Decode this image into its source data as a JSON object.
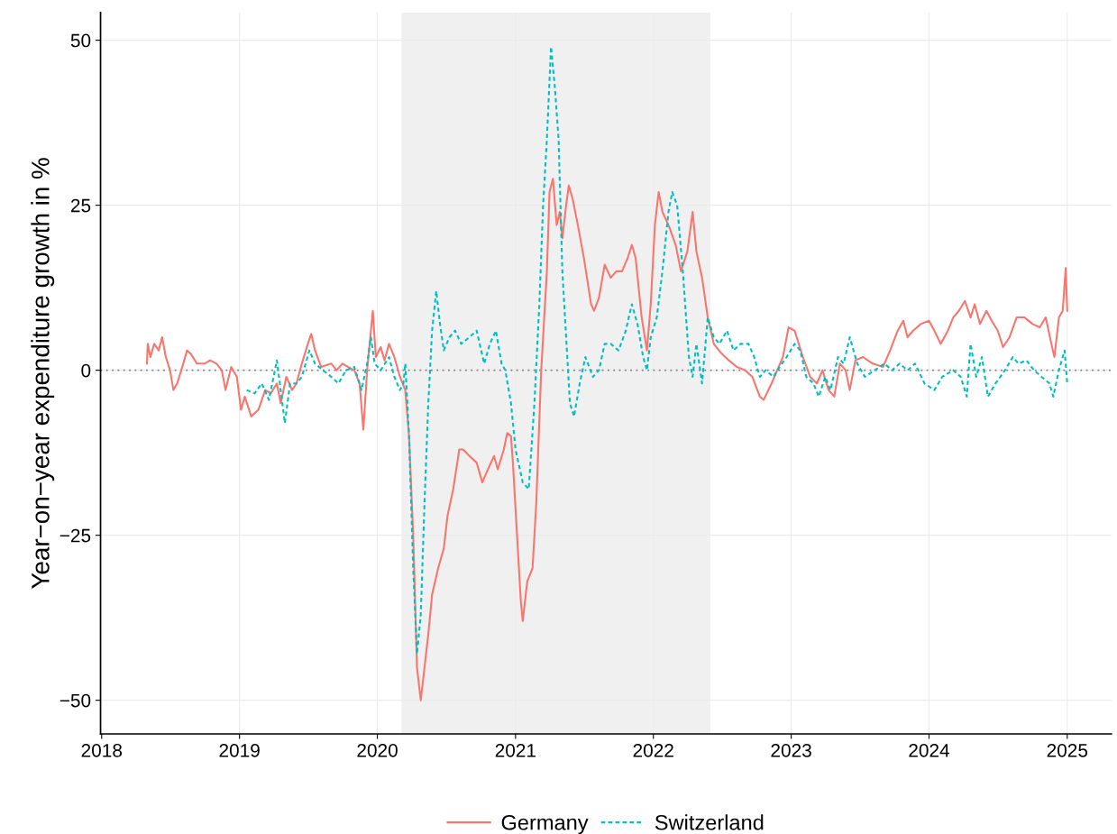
{
  "chart_data": {
    "type": "line",
    "ylabel": "Year−on−year expenditure growth in %",
    "xlim": [
      "2017-12-29",
      "2025-04-28"
    ],
    "ylim": [
      -55.1,
      54.2
    ],
    "xticks": [
      {
        "value": "2018-01-01",
        "label": "2018"
      },
      {
        "value": "2019-01-01",
        "label": "2019"
      },
      {
        "value": "2020-01-01",
        "label": "2020"
      },
      {
        "value": "2021-01-01",
        "label": "2021"
      },
      {
        "value": "2022-01-01",
        "label": "2022"
      },
      {
        "value": "2023-01-01",
        "label": "2023"
      },
      {
        "value": "2024-01-01",
        "label": "2024"
      },
      {
        "value": "2025-01-01",
        "label": "2025"
      }
    ],
    "yticks": [
      -50,
      -25,
      0,
      25,
      50
    ],
    "grid": true,
    "legend": "bottom",
    "ref_lines": [
      {
        "axis": "y",
        "value": 0,
        "color": "#808080",
        "line_style": "dotted"
      }
    ],
    "bands": [
      {
        "axis": "x",
        "from": "2020-03-05",
        "to": "2022-06-01",
        "color": "#f0f0f0"
      }
    ],
    "series": [
      {
        "name": "Germany",
        "color": "#f8766d",
        "line_style": "solid",
        "x": [
          "2018-05-01",
          "2018-05-03",
          "2018-05-10",
          "2018-05-20",
          "2018-06-01",
          "2018-06-10",
          "2018-06-20",
          "2018-07-01",
          "2018-07-10",
          "2018-07-20",
          "2018-08-05",
          "2018-08-15",
          "2018-08-25",
          "2018-09-10",
          "2018-10-01",
          "2018-10-15",
          "2018-11-01",
          "2018-11-15",
          "2018-11-25",
          "2018-12-10",
          "2018-12-25",
          "2019-01-05",
          "2019-01-15",
          "2019-02-01",
          "2019-02-20",
          "2019-03-10",
          "2019-03-25",
          "2019-04-10",
          "2019-04-20",
          "2019-05-05",
          "2019-05-20",
          "2019-06-01",
          "2019-06-15",
          "2019-07-01",
          "2019-07-10",
          "2019-07-20",
          "2019-08-05",
          "2019-09-01",
          "2019-09-15",
          "2019-10-01",
          "2019-10-15",
          "2019-11-01",
          "2019-11-15",
          "2019-11-25",
          "2019-12-05",
          "2019-12-20",
          "2019-12-28",
          "2020-01-10",
          "2020-01-20",
          "2020-02-01",
          "2020-02-15",
          "2020-03-01",
          "2020-03-15",
          "2020-03-25",
          "2020-04-05",
          "2020-04-15",
          "2020-04-25",
          "2020-05-05",
          "2020-05-15",
          "2020-05-25",
          "2020-06-10",
          "2020-06-25",
          "2020-07-05",
          "2020-07-20",
          "2020-08-05",
          "2020-08-15",
          "2020-09-01",
          "2020-09-20",
          "2020-10-05",
          "2020-10-20",
          "2020-11-05",
          "2020-11-15",
          "2020-12-01",
          "2020-12-10",
          "2020-12-20",
          "2020-12-25",
          "2021-01-05",
          "2021-01-15",
          "2021-01-20",
          "2021-02-01",
          "2021-02-15",
          "2021-02-25",
          "2021-03-10",
          "2021-03-25",
          "2021-04-01",
          "2021-04-10",
          "2021-04-20",
          "2021-04-28",
          "2021-05-05",
          "2021-05-15",
          "2021-05-22",
          "2021-06-01",
          "2021-06-15",
          "2021-07-01",
          "2021-07-20",
          "2021-07-28",
          "2021-08-10",
          "2021-08-25",
          "2021-09-10",
          "2021-09-25",
          "2021-10-10",
          "2021-10-25",
          "2021-11-05",
          "2021-11-15",
          "2021-12-01",
          "2021-12-15",
          "2021-12-25",
          "2022-01-05",
          "2022-01-15",
          "2022-01-25",
          "2022-02-10",
          "2022-03-01",
          "2022-03-15",
          "2022-04-01",
          "2022-04-15",
          "2022-04-25",
          "2022-05-10",
          "2022-05-25",
          "2022-06-10",
          "2022-07-01",
          "2022-07-20",
          "2022-08-10",
          "2022-09-01",
          "2022-09-20",
          "2022-10-10",
          "2022-10-20",
          "2022-11-10",
          "2022-11-25",
          "2022-12-10",
          "2022-12-25",
          "2023-01-10",
          "2023-02-01",
          "2023-02-20",
          "2023-03-10",
          "2023-03-25",
          "2023-04-10",
          "2023-04-25",
          "2023-05-10",
          "2023-05-25",
          "2023-06-05",
          "2023-06-20",
          "2023-07-10",
          "2023-08-05",
          "2023-09-01",
          "2023-09-20",
          "2023-10-10",
          "2023-10-25",
          "2023-11-05",
          "2023-11-20",
          "2023-12-10",
          "2024-01-01",
          "2024-01-15",
          "2024-02-01",
          "2024-02-20",
          "2024-03-05",
          "2024-03-20",
          "2024-04-05",
          "2024-04-20",
          "2024-05-01",
          "2024-05-15",
          "2024-06-01",
          "2024-06-15",
          "2024-07-01",
          "2024-07-15",
          "2024-08-01",
          "2024-08-20",
          "2024-09-10",
          "2024-10-01",
          "2024-10-20",
          "2024-11-05",
          "2024-11-20",
          "2024-11-28",
          "2024-12-10",
          "2024-12-20",
          "2024-12-28",
          "2025-01-01"
        ],
        "values": [
          1,
          4,
          2,
          4,
          3,
          5,
          2,
          0,
          -3,
          -2,
          1,
          3,
          2.5,
          1,
          1,
          1.5,
          1,
          0,
          -3,
          0.5,
          -1,
          -6,
          -4,
          -7,
          -6,
          -3,
          -3.5,
          -2,
          -5,
          -1,
          -3,
          -2,
          1,
          4,
          5.5,
          3,
          0.5,
          1,
          0,
          1,
          0.5,
          0,
          -2,
          -9,
          0,
          9,
          2,
          3.5,
          1.5,
          4,
          2,
          -1,
          -3,
          -10,
          -25,
          -45,
          -50,
          -45,
          -40,
          -34,
          -30,
          -27,
          -22,
          -18,
          -12,
          -12,
          -13,
          -14,
          -17,
          -15,
          -13,
          -15,
          -12,
          -9.5,
          -10,
          -14,
          -25,
          -35,
          -38,
          -32,
          -30,
          -20,
          0,
          15,
          27,
          29,
          22,
          24,
          20,
          25,
          28,
          26,
          22,
          17,
          10,
          9,
          11,
          16,
          14,
          15,
          15,
          17,
          19,
          17,
          8,
          3,
          10,
          22,
          27,
          24,
          22,
          19,
          15,
          18,
          24,
          18,
          14,
          8,
          4,
          2.5,
          1.5,
          0.5,
          0,
          -1,
          -4,
          -4.5,
          -2,
          0,
          2,
          6.5,
          6,
          2,
          -1,
          -2,
          0,
          -3,
          -4,
          1,
          0,
          -3,
          1.5,
          2,
          1,
          0.5,
          3,
          6,
          7.5,
          5,
          6,
          7,
          7.5,
          6,
          4,
          6,
          8,
          9,
          10.5,
          8,
          10,
          7,
          9,
          7.5,
          6,
          3.5,
          5,
          8,
          8,
          7,
          6.5,
          8,
          4,
          2,
          8,
          9,
          15.5,
          9
        ]
      },
      {
        "name": "Switzerland",
        "color": "#00bfc4",
        "line_style": "dashed",
        "x": [
          "2019-01-20",
          "2019-02-10",
          "2019-03-01",
          "2019-03-20",
          "2019-04-10",
          "2019-04-20",
          "2019-05-01",
          "2019-05-15",
          "2019-06-01",
          "2019-06-15",
          "2019-07-05",
          "2019-07-20",
          "2019-08-10",
          "2019-09-01",
          "2019-09-20",
          "2019-10-10",
          "2019-11-01",
          "2019-11-20",
          "2019-12-05",
          "2019-12-15",
          "2019-12-25",
          "2020-01-10",
          "2020-02-01",
          "2020-02-15",
          "2020-03-01",
          "2020-03-10",
          "2020-03-15",
          "2020-03-25",
          "2020-04-05",
          "2020-04-15",
          "2020-04-25",
          "2020-05-05",
          "2020-05-15",
          "2020-05-25",
          "2020-06-05",
          "2020-06-15",
          "2020-06-25",
          "2020-07-10",
          "2020-07-25",
          "2020-08-10",
          "2020-09-01",
          "2020-09-20",
          "2020-10-10",
          "2020-10-25",
          "2020-11-10",
          "2020-11-25",
          "2020-12-05",
          "2020-12-20",
          "2021-01-01",
          "2021-01-20",
          "2021-02-05",
          "2021-02-20",
          "2021-03-05",
          "2021-03-15",
          "2021-03-25",
          "2021-04-05",
          "2021-04-15",
          "2021-04-25",
          "2021-05-05",
          "2021-05-25",
          "2021-06-05",
          "2021-06-20",
          "2021-07-05",
          "2021-07-25",
          "2021-08-10",
          "2021-08-25",
          "2021-09-10",
          "2021-10-01",
          "2021-10-20",
          "2021-11-05",
          "2021-11-20",
          "2021-12-05",
          "2021-12-15",
          "2021-12-25",
          "2022-01-10",
          "2022-01-25",
          "2022-02-10",
          "2022-02-20",
          "2022-03-05",
          "2022-03-20",
          "2022-04-05",
          "2022-04-15",
          "2022-04-25",
          "2022-05-10",
          "2022-05-25",
          "2022-06-10",
          "2022-06-25",
          "2022-07-15",
          "2022-08-01",
          "2022-08-20",
          "2022-09-10",
          "2022-09-25",
          "2022-10-10",
          "2022-10-25",
          "2022-11-15",
          "2022-12-01",
          "2022-12-20",
          "2023-01-10",
          "2023-01-25",
          "2023-02-10",
          "2023-03-01",
          "2023-03-15",
          "2023-04-01",
          "2023-04-15",
          "2023-05-05",
          "2023-05-20",
          "2023-06-05",
          "2023-06-25",
          "2023-07-15",
          "2023-08-10",
          "2023-09-05",
          "2023-09-25",
          "2023-10-15",
          "2023-11-05",
          "2023-11-25",
          "2023-12-20",
          "2024-01-15",
          "2024-02-05",
          "2024-03-05",
          "2024-03-25",
          "2024-04-10",
          "2024-04-20",
          "2024-05-05",
          "2024-05-20",
          "2024-06-05",
          "2024-06-25",
          "2024-07-20",
          "2024-08-10",
          "2024-08-25",
          "2024-09-15",
          "2024-10-05",
          "2024-10-25",
          "2024-11-15",
          "2024-11-25",
          "2024-12-10",
          "2024-12-25",
          "2025-01-01"
        ],
        "values": [
          -3,
          -3.5,
          -2,
          -4.5,
          1.5,
          -3,
          -8,
          -2,
          -2,
          -1,
          3,
          1,
          0,
          -1,
          -2,
          0,
          0.5,
          -3,
          1,
          5,
          1,
          0,
          2,
          -1,
          -3,
          -2,
          1,
          -10,
          -30,
          -43,
          -37,
          -20,
          -5,
          6,
          12,
          7,
          3,
          5,
          6,
          4,
          5,
          6,
          1,
          4,
          6,
          1,
          0,
          -5,
          -12,
          -17,
          -18,
          -5,
          10,
          25,
          35,
          49,
          43,
          35,
          15,
          -5,
          -7,
          -2,
          2,
          -1,
          0,
          4,
          4,
          3,
          6,
          10,
          7,
          2,
          0,
          5,
          8,
          15,
          24,
          27,
          25,
          15,
          2,
          -1,
          4,
          -2,
          8,
          5,
          4,
          6,
          3,
          4,
          4,
          2,
          -1,
          0,
          -1,
          0.5,
          2,
          4,
          3,
          -1,
          -2,
          -4,
          -1,
          -3,
          2,
          1,
          5,
          1,
          -1,
          0,
          1,
          0,
          1,
          0,
          1,
          -2,
          -3,
          -1,
          0,
          -1,
          -4,
          4,
          -1,
          2,
          -4,
          -2,
          0,
          2,
          1,
          1.5,
          0,
          -1,
          -2,
          -4,
          0,
          3,
          -2
        ]
      }
    ]
  }
}
